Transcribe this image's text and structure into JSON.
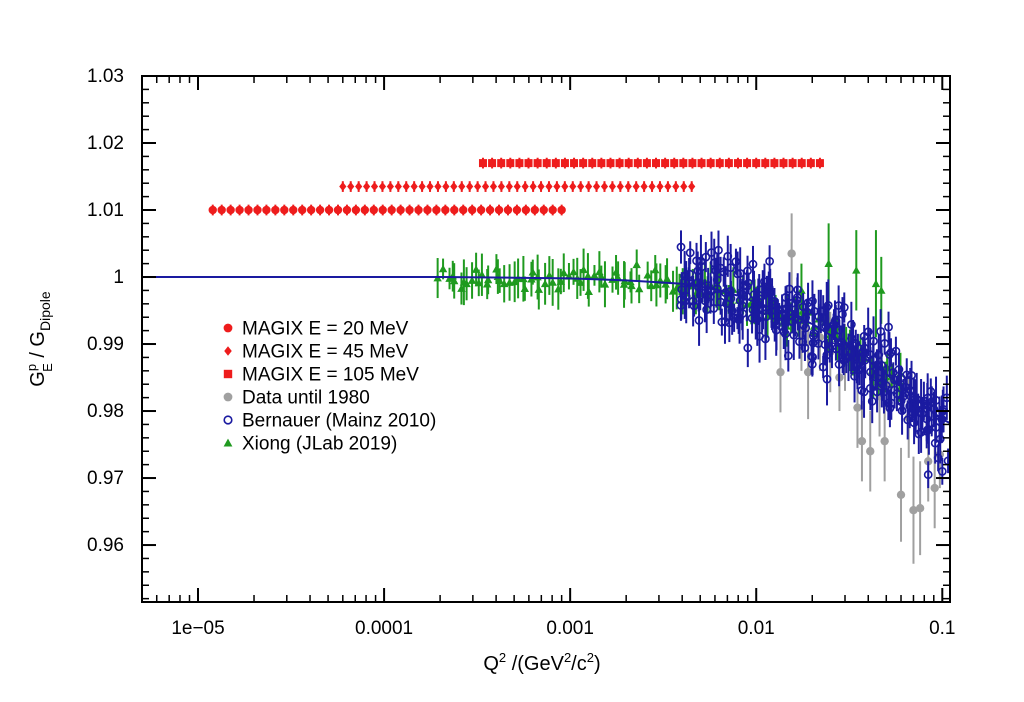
{
  "chart_data": {
    "type": "scatter",
    "title": "",
    "x_scale": "log",
    "xlim": [
      5e-06,
      0.11
    ],
    "ylim": [
      0.9515,
      1.03
    ],
    "grid": false,
    "legend_position": "left-center",
    "xlabel": {
      "base": "Q",
      "sup": "2",
      "unit_prefix": " /(GeV",
      "unit_sup1": "2",
      "unit_mid": "/c",
      "unit_sup2": "2",
      "unit_suffix": ")"
    },
    "ylabel": {
      "num_base": "G",
      "num_sup": "p",
      "num_sub": "E",
      "sep": " / ",
      "den_base": "G",
      "den_sub": "Dipole"
    },
    "x_ticks": [
      {
        "value": 1e-05,
        "label": "1e−05"
      },
      {
        "value": 0.0001,
        "label": "0.0001"
      },
      {
        "value": 0.001,
        "label": "0.001"
      },
      {
        "value": 0.01,
        "label": "0.01"
      },
      {
        "value": 0.1,
        "label": "0.1"
      }
    ],
    "y_ticks": [
      {
        "value": 0.96,
        "label": "0.96"
      },
      {
        "value": 0.97,
        "label": "0.97"
      },
      {
        "value": 0.98,
        "label": "0.98"
      },
      {
        "value": 0.99,
        "label": "0.99"
      },
      {
        "value": 1.0,
        "label": "1"
      },
      {
        "value": 1.01,
        "label": "1.01"
      },
      {
        "value": 1.02,
        "label": "1.02"
      },
      {
        "value": 1.03,
        "label": "1.03"
      }
    ],
    "fit_curve": {
      "color": "#1a1aa0",
      "x": [
        5e-06,
        0.0002,
        0.0005,
        0.001,
        0.002,
        0.004,
        0.006,
        0.008,
        0.01,
        0.015,
        0.02,
        0.03,
        0.04,
        0.05,
        0.06,
        0.07,
        0.08,
        0.09,
        0.1,
        0.11
      ],
      "y": [
        1.0,
        1.0,
        0.9999,
        0.9998,
        0.9995,
        0.999,
        0.9982,
        0.9972,
        0.9962,
        0.9945,
        0.993,
        0.99,
        0.9875,
        0.9855,
        0.9838,
        0.982,
        0.9808,
        0.9797,
        0.9788,
        0.9782
      ]
    },
    "series": [
      {
        "name": "MAGIX  E =  20 MeV",
        "marker": "circle",
        "color": "#ee1c1c",
        "generator": {
          "x_start": 1.2e-05,
          "x_end": 0.0009,
          "count": 40,
          "y": 1.01,
          "err": 0.0008
        }
      },
      {
        "name": "MAGIX  E =  45 MeV",
        "marker": "diamond",
        "color": "#ee1c1c",
        "generator": {
          "x_start": 6e-05,
          "x_end": 0.0045,
          "count": 45,
          "y": 1.0135,
          "err": 0.0008
        }
      },
      {
        "name": "MAGIX  E = 105 MeV",
        "marker": "square",
        "color": "#ee1c1c",
        "generator": {
          "x_start": 0.00034,
          "x_end": 0.022,
          "count": 38,
          "y": 1.017,
          "err": 0.0008
        }
      },
      {
        "name": "Data until 1980",
        "marker": "circle",
        "color": "#a0a0a0",
        "points": [
          {
            "x": 0.0135,
            "y": 0.9858,
            "err": 0.006
          },
          {
            "x": 0.0155,
            "y": 1.0035,
            "err": 0.006
          },
          {
            "x": 0.0175,
            "y": 0.992,
            "err": 0.006
          },
          {
            "x": 0.019,
            "y": 0.9858,
            "err": 0.007
          },
          {
            "x": 0.022,
            "y": 0.991,
            "err": 0.005
          },
          {
            "x": 0.025,
            "y": 0.9888,
            "err": 0.006
          },
          {
            "x": 0.028,
            "y": 0.985,
            "err": 0.005
          },
          {
            "x": 0.03,
            "y": 0.988,
            "err": 0.005
          },
          {
            "x": 0.035,
            "y": 0.9805,
            "err": 0.006
          },
          {
            "x": 0.037,
            "y": 0.9755,
            "err": 0.006
          },
          {
            "x": 0.041,
            "y": 0.974,
            "err": 0.006
          },
          {
            "x": 0.046,
            "y": 0.9822,
            "err": 0.006
          },
          {
            "x": 0.049,
            "y": 0.9755,
            "err": 0.006
          },
          {
            "x": 0.053,
            "y": 0.984,
            "err": 0.005
          },
          {
            "x": 0.06,
            "y": 0.9675,
            "err": 0.007
          },
          {
            "x": 0.066,
            "y": 0.979,
            "err": 0.006
          },
          {
            "x": 0.07,
            "y": 0.9652,
            "err": 0.008
          },
          {
            "x": 0.076,
            "y": 0.9655,
            "err": 0.007
          },
          {
            "x": 0.084,
            "y": 0.9725,
            "err": 0.006
          },
          {
            "x": 0.091,
            "y": 0.9685,
            "err": 0.006
          },
          {
            "x": 0.097,
            "y": 0.9735,
            "err": 0.005
          }
        ]
      },
      {
        "name": "Bernauer (Mainz 2010)",
        "marker": "open-circle",
        "color": "#1a1aa0",
        "generator": {
          "x_start": 0.0039,
          "x_end": 0.105,
          "count": 260,
          "noise": 0.0045,
          "err_min": 0.0015,
          "err_max": 0.004
        },
        "points": [
          {
            "x": 0.084,
            "y": 0.9705,
            "err": 0.002
          },
          {
            "x": 0.1,
            "y": 0.971,
            "err": 0.002
          },
          {
            "x": 0.095,
            "y": 0.973,
            "err": 0.002
          }
        ]
      },
      {
        "name": "Xiong (JLab 2019)",
        "marker": "triangle",
        "color": "#1f9a1f",
        "generator": {
          "x_start": 0.0002,
          "x_end": 0.06,
          "count": 120,
          "noise": 0.0015,
          "err_min": 0.0015,
          "err_max": 0.0035
        },
        "points": [
          {
            "x": 0.0245,
            "y": 1.002,
            "err": 0.006
          },
          {
            "x": 0.0345,
            "y": 1.001,
            "err": 0.006
          },
          {
            "x": 0.044,
            "y": 0.999,
            "err": 0.008
          },
          {
            "x": 0.047,
            "y": 0.998,
            "err": 0.005
          },
          {
            "x": 0.0175,
            "y": 0.998,
            "err": 0.004
          }
        ]
      }
    ]
  }
}
